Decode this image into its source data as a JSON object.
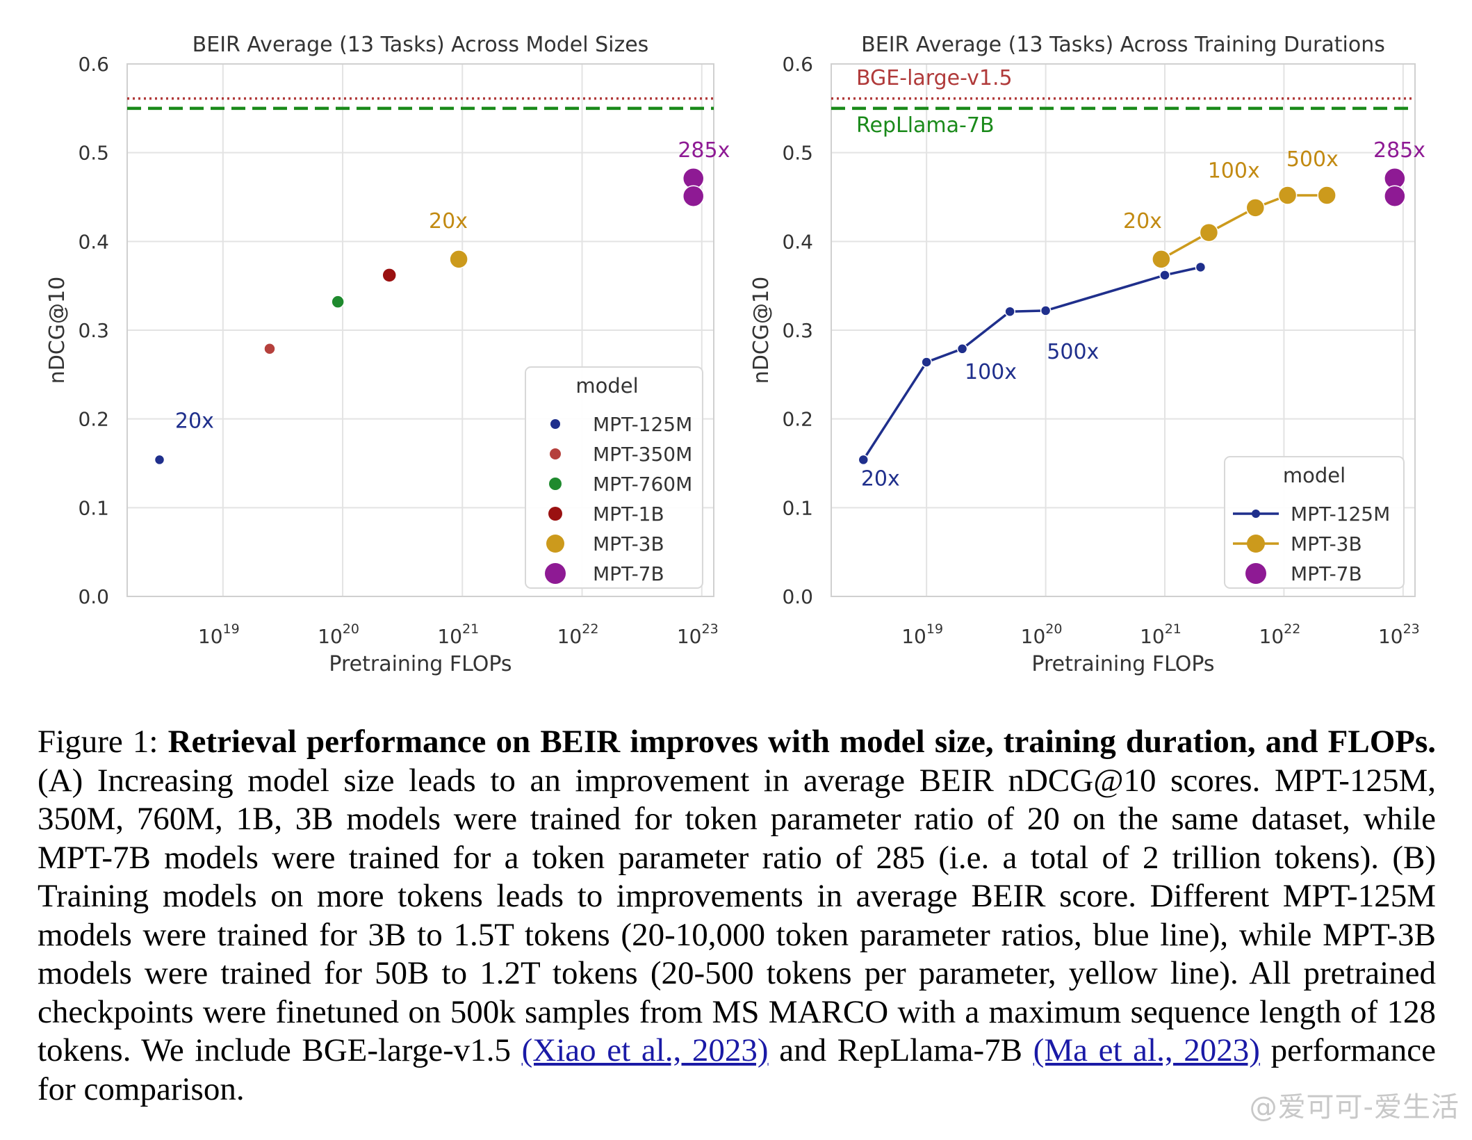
{
  "chart_data": [
    {
      "type": "scatter",
      "title": "BEIR Average (13 Tasks) Across Model Sizes",
      "xlabel": "Pretraining FLOPs",
      "ylabel": "nDCG@10",
      "xscale": "log",
      "xlim_log10": [
        18.2,
        23.1
      ],
      "ylim": [
        0.0,
        0.6
      ],
      "yticks": [
        "0.0",
        "0.1",
        "0.2",
        "0.3",
        "0.4",
        "0.5",
        "0.6"
      ],
      "xticks": [
        {
          "base": "10",
          "exp": "19",
          "v": 19
        },
        {
          "base": "10",
          "exp": "20",
          "v": 20
        },
        {
          "base": "10",
          "exp": "21",
          "v": 21
        },
        {
          "base": "10",
          "exp": "22",
          "v": 22
        },
        {
          "base": "10",
          "exp": "23",
          "v": 23
        }
      ],
      "grid": true,
      "reference_lines": [
        {
          "y": 0.561,
          "color": "#b03a3a",
          "style": "dotted"
        },
        {
          "y": 0.55,
          "color": "#1a8a1a",
          "style": "dashed"
        }
      ],
      "series": [
        {
          "name": "MPT-125M",
          "color": "#1f2f8c",
          "size": 1,
          "points": [
            {
              "x": 18.47,
              "y": 0.154
            }
          ]
        },
        {
          "name": "MPT-350M",
          "color": "#b5403c",
          "size": 2,
          "points": [
            {
              "x": 19.39,
              "y": 0.279
            }
          ]
        },
        {
          "name": "MPT-760M",
          "color": "#1f8a2e",
          "size": 3,
          "points": [
            {
              "x": 19.96,
              "y": 0.332
            }
          ]
        },
        {
          "name": "MPT-1B",
          "color": "#9a1111",
          "size": 4,
          "points": [
            {
              "x": 20.39,
              "y": 0.362
            }
          ]
        },
        {
          "name": "MPT-3B",
          "color": "#cc9a1c",
          "size": 5,
          "points": [
            {
              "x": 20.97,
              "y": 0.38
            }
          ]
        },
        {
          "name": "MPT-7B",
          "color": "#8e1a94",
          "size": 6,
          "points": [
            {
              "x": 22.93,
              "y": 0.471
            },
            {
              "x": 22.93,
              "y": 0.451
            }
          ]
        }
      ],
      "annotations": [
        {
          "text": "20x",
          "x": 18.6,
          "y": 0.19,
          "color": "#1f2f8c"
        },
        {
          "text": "20x",
          "x": 20.72,
          "y": 0.415,
          "color": "#c28a12"
        },
        {
          "text": "285x",
          "x": 22.8,
          "y": 0.495,
          "color": "#8e1a94"
        }
      ],
      "legend": {
        "title": "model",
        "placement": "lower-right",
        "items": [
          "MPT-125M",
          "MPT-350M",
          "MPT-760M",
          "MPT-1B",
          "MPT-3B",
          "MPT-7B"
        ]
      }
    },
    {
      "type": "line",
      "title": "BEIR Average (13 Tasks) Across Training Durations",
      "xlabel": "Pretraining FLOPs",
      "ylabel": "nDCG@10",
      "xscale": "log",
      "xlim_log10": [
        18.2,
        23.1
      ],
      "ylim": [
        0.0,
        0.6
      ],
      "yticks": [
        "0.0",
        "0.1",
        "0.2",
        "0.3",
        "0.4",
        "0.5",
        "0.6"
      ],
      "xticks": [
        {
          "base": "10",
          "exp": "19",
          "v": 19
        },
        {
          "base": "10",
          "exp": "20",
          "v": 20
        },
        {
          "base": "10",
          "exp": "21",
          "v": 21
        },
        {
          "base": "10",
          "exp": "22",
          "v": 22
        },
        {
          "base": "10",
          "exp": "23",
          "v": 23
        }
      ],
      "grid": true,
      "reference_lines": [
        {
          "y": 0.561,
          "color": "#b03a3a",
          "style": "dotted",
          "label": "BGE-large-v1.5"
        },
        {
          "y": 0.55,
          "color": "#1a8a1a",
          "style": "dashed",
          "label": "RepLlama-7B"
        }
      ],
      "series": [
        {
          "name": "MPT-125M",
          "color": "#1f2f8c",
          "marker": "small",
          "line": true,
          "points": [
            {
              "x": 18.47,
              "y": 0.154
            },
            {
              "x": 19.0,
              "y": 0.264
            },
            {
              "x": 19.3,
              "y": 0.279
            },
            {
              "x": 19.7,
              "y": 0.321
            },
            {
              "x": 20.0,
              "y": 0.322
            },
            {
              "x": 21.0,
              "y": 0.362
            },
            {
              "x": 21.3,
              "y": 0.371
            }
          ]
        },
        {
          "name": "MPT-3B",
          "color": "#cc9a1c",
          "marker": "medium",
          "line": true,
          "points": [
            {
              "x": 20.97,
              "y": 0.38
            },
            {
              "x": 21.37,
              "y": 0.41
            },
            {
              "x": 21.76,
              "y": 0.438
            },
            {
              "x": 22.03,
              "y": 0.452
            },
            {
              "x": 22.36,
              "y": 0.452
            }
          ]
        },
        {
          "name": "MPT-7B",
          "color": "#8e1a94",
          "marker": "large",
          "line": false,
          "points": [
            {
              "x": 22.93,
              "y": 0.471
            },
            {
              "x": 22.93,
              "y": 0.451
            }
          ]
        }
      ],
      "annotations": [
        {
          "text": "20x",
          "x": 18.45,
          "y": 0.125,
          "color": "#1f2f8c"
        },
        {
          "text": "100x",
          "x": 19.32,
          "y": 0.245,
          "color": "#1f2f8c"
        },
        {
          "text": "500x",
          "x": 20.01,
          "y": 0.268,
          "color": "#1f2f8c"
        },
        {
          "text": "20x",
          "x": 20.65,
          "y": 0.415,
          "color": "#c28a12"
        },
        {
          "text": "100x",
          "x": 21.36,
          "y": 0.472,
          "color": "#c28a12"
        },
        {
          "text": "500x",
          "x": 22.02,
          "y": 0.485,
          "color": "#c28a12"
        },
        {
          "text": "285x",
          "x": 22.75,
          "y": 0.495,
          "color": "#8e1a94"
        }
      ],
      "legend": {
        "title": "model",
        "placement": "lower-right",
        "items": [
          "MPT-125M",
          "MPT-3B",
          "MPT-7B"
        ]
      }
    }
  ],
  "caption": {
    "label": "Figure 1:",
    "bold": "Retrieval performance on BEIR improves with model size, training duration, and FLOPs.",
    "body1": "(A) Increasing model size leads to an improvement in average BEIR nDCG@10 scores. MPT-125M, 350M, 760M, 1B, 3B models were trained for token parameter ratio of 20 on the same dataset, while MPT-7B models were trained for a token parameter ratio of 285 (i.e.  a total of 2 trillion tokens). (B) Training models on more tokens leads to improvements in average BEIR score. Different MPT-125M models were trained for 3B to 1.5T tokens (20-10,000 token parameter ratios, blue line), while MPT-3B models were trained for 50B to 1.2T tokens (20-500 tokens per parameter, yellow line). All pretrained checkpoints were finetuned on 500k samples from MS MARCO with a maximum sequence length of 128 tokens.  We include BGE-large-v1.5",
    "link1": "(Xiao et al., 2023)",
    "body2": "and RepLlama-7B",
    "link2": "(Ma et al., 2023)",
    "body3": "performance for comparison."
  },
  "watermark": "@爱可可-爱生活"
}
